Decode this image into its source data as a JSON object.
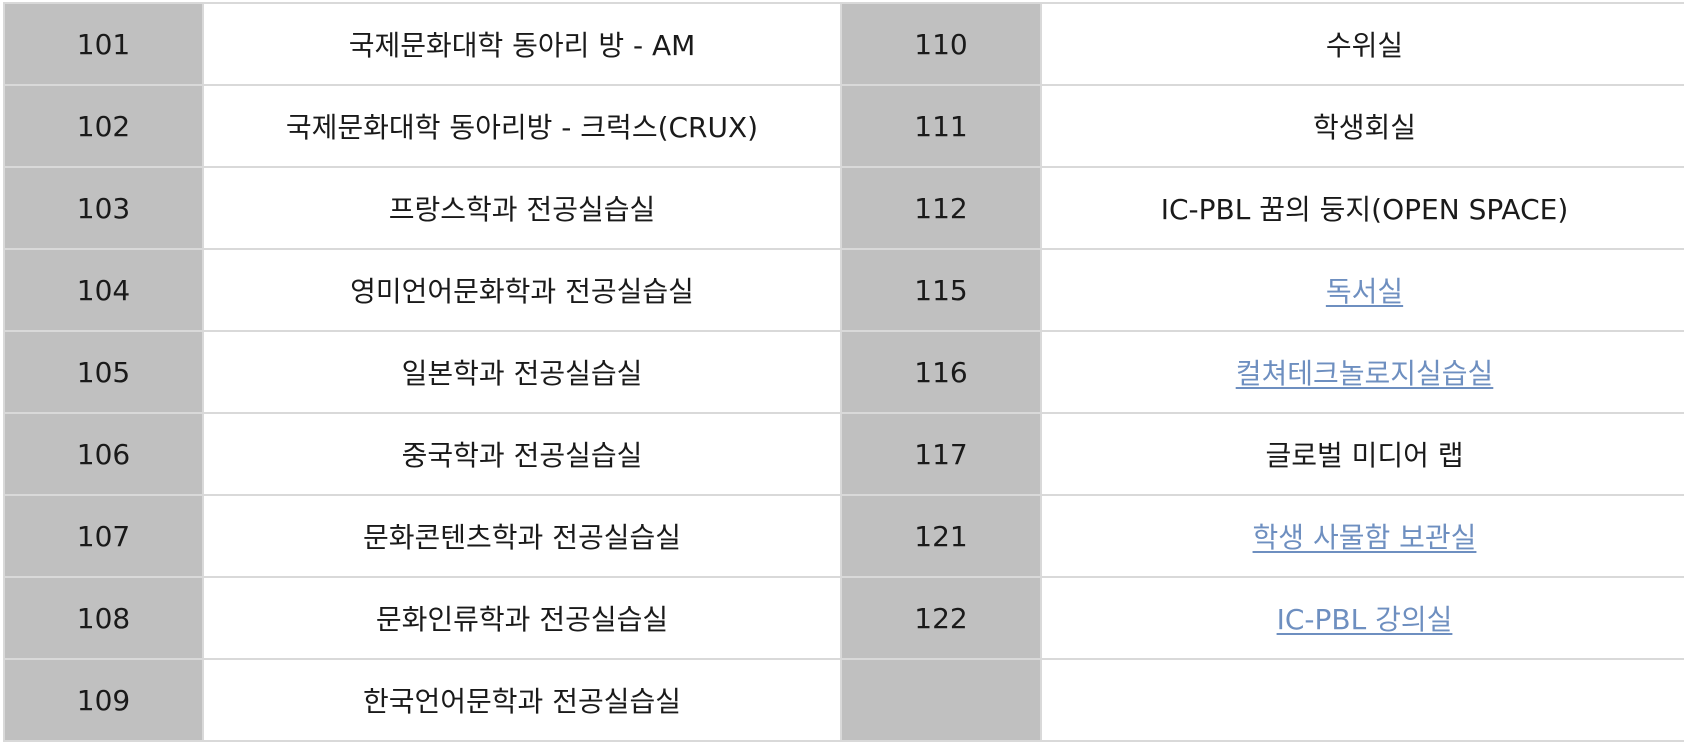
{
  "rows": [
    {
      "left_num": "101",
      "left_name": "국제문화대학 동아리 방 - AM",
      "right_num": "110",
      "right_name": "수위실"
    },
    {
      "left_num": "102",
      "left_name": "국제문화대학 동아리방 - 크럭스(CRUX)",
      "right_num": "111",
      "right_name": "학생회실"
    },
    {
      "left_num": "103",
      "left_name": "프랑스학과 전공실습실",
      "right_num": "112",
      "right_name": "IC-PBL 꿈의 둥지(OPEN SPACE)"
    },
    {
      "left_num": "104",
      "left_name": "영미언어문화학과 전공실습실",
      "right_num": "115",
      "right_name": "독서실"
    },
    {
      "left_num": "105",
      "left_name": "일본학과 전공실습실",
      "right_num": "116",
      "right_name": "컬쳐테크놀로지실습실"
    },
    {
      "left_num": "106",
      "left_name": "중국학과 전공실습실",
      "right_num": "117",
      "right_name": "글로벌 미디어 랩"
    },
    {
      "left_num": "107",
      "left_name": "문화콘텐츠학과 전공실습실",
      "right_num": "121",
      "right_name": "학생 사물함 보관실"
    },
    {
      "left_num": "108",
      "left_name": "문화인류학과 전공실습실",
      "right_num": "122",
      "right_name": "IC-PBL 강의실"
    },
    {
      "left_num": "109",
      "left_name": "한국언어문학과 전공실습실",
      "right_num": "",
      "right_name": ""
    }
  ],
  "colors": {
    "number_cell_bg": "#c0c0c0",
    "link": "#6e8fc0",
    "border": "#d9d9d9"
  }
}
